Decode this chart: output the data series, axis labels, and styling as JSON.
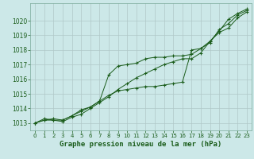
{
  "title": "Graphe pression niveau de la mer (hPa)",
  "bg_color": "#cce8e8",
  "grid_color": "#b0c8c8",
  "line_color": "#1a5c1a",
  "xlim": [
    -0.5,
    23.5
  ],
  "ylim": [
    1012.5,
    1021.2
  ],
  "yticks": [
    1013,
    1014,
    1015,
    1016,
    1017,
    1018,
    1019,
    1020
  ],
  "xticks": [
    0,
    1,
    2,
    3,
    4,
    5,
    6,
    7,
    8,
    9,
    10,
    11,
    12,
    13,
    14,
    15,
    16,
    17,
    18,
    19,
    20,
    21,
    22,
    23
  ],
  "series": [
    [
      1013.0,
      1013.2,
      1013.2,
      1013.1,
      1013.4,
      1013.6,
      1014.0,
      1014.4,
      1014.8,
      1015.3,
      1015.7,
      1016.1,
      1016.4,
      1016.7,
      1017.0,
      1017.2,
      1017.4,
      1017.4,
      1017.8,
      1018.6,
      1019.3,
      1020.1,
      1020.5,
      1020.8
    ],
    [
      1013.0,
      1013.2,
      1013.3,
      1013.2,
      1013.5,
      1013.9,
      1014.1,
      1014.5,
      1016.3,
      1016.9,
      1017.0,
      1017.1,
      1017.4,
      1017.5,
      1017.5,
      1017.6,
      1017.6,
      1017.7,
      1018.1,
      1018.5,
      1019.4,
      1019.8,
      1020.4,
      1020.7
    ],
    [
      1013.0,
      1013.3,
      1013.2,
      1013.2,
      1013.5,
      1013.8,
      1014.1,
      1014.5,
      1014.9,
      1015.2,
      1015.3,
      1015.4,
      1015.5,
      1015.5,
      1015.6,
      1015.7,
      1015.8,
      1018.0,
      1018.1,
      1018.6,
      1019.2,
      1019.5,
      1020.2,
      1020.6
    ]
  ]
}
